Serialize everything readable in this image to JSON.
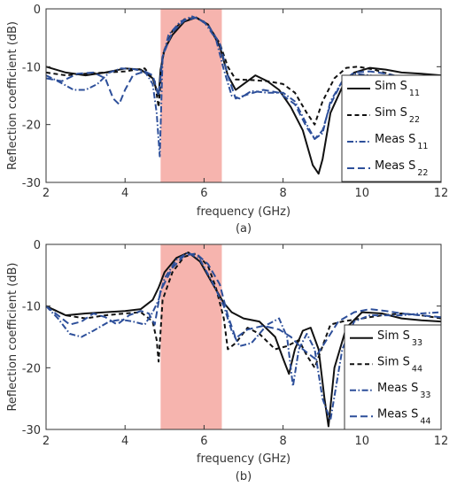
{
  "chart_data": [
    {
      "type": "line",
      "caption": "(a)",
      "xlabel": "frequency (GHz)",
      "ylabel": "Reflection coefficient  (dB)",
      "xlim": [
        2,
        12
      ],
      "ylim": [
        -30,
        0
      ],
      "xticks": [
        "2",
        "4",
        "6",
        "8",
        "10",
        "12"
      ],
      "yticks": [
        "0",
        "-10",
        "-20",
        "-30"
      ],
      "grid": false,
      "legend_position": "right",
      "band": {
        "x0": 4.9,
        "x1": 6.45,
        "color": "#f4a7a0"
      },
      "series": [
        {
          "name": "Sim S",
          "sub": "11",
          "color": "#111111",
          "dash": "solid",
          "x": [
            2,
            2.5,
            3,
            3.5,
            4,
            4.4,
            4.7,
            4.85,
            4.9,
            5.0,
            5.2,
            5.5,
            5.8,
            6.1,
            6.4,
            6.6,
            6.8,
            7.0,
            7.3,
            7.6,
            7.9,
            8.2,
            8.5,
            8.75,
            8.9,
            9.0,
            9.2,
            9.5,
            9.8,
            10.2,
            10.6,
            11,
            11.5,
            12
          ],
          "y": [
            -10,
            -11,
            -11.5,
            -11,
            -10.3,
            -10.5,
            -12,
            -15,
            -10.5,
            -7,
            -4.5,
            -2.2,
            -1.5,
            -2.7,
            -6.5,
            -11.5,
            -14,
            -13,
            -11.5,
            -12.5,
            -14,
            -17,
            -21,
            -27,
            -28.5,
            -26,
            -18,
            -13.5,
            -11,
            -10.2,
            -10.5,
            -11,
            -11.2,
            -11.5
          ]
        },
        {
          "name": "Sim S",
          "sub": "22",
          "color": "#111111",
          "dash": "dashed",
          "x": [
            2,
            2.5,
            3,
            3.5,
            4,
            4.5,
            4.75,
            4.85,
            4.95,
            5.2,
            5.5,
            5.8,
            6.1,
            6.4,
            6.6,
            6.8,
            7.2,
            7.6,
            8.0,
            8.3,
            8.6,
            8.8,
            9.0,
            9.3,
            9.6,
            9.9,
            10.3,
            10.8,
            11.5,
            12
          ],
          "y": [
            -11,
            -11.5,
            -11.2,
            -11,
            -10.8,
            -10.3,
            -12.5,
            -17,
            -8,
            -3.8,
            -1.8,
            -1.5,
            -2.8,
            -6,
            -10,
            -12.2,
            -12.3,
            -12.5,
            -13,
            -14.5,
            -18,
            -20,
            -16,
            -12,
            -10.2,
            -10,
            -10.5,
            -11.5,
            -12,
            -12.5
          ]
        },
        {
          "name": "Meas S",
          "sub": "11",
          "color": "#2d4f9a",
          "dash": "dashdot",
          "x": [
            2,
            2.3,
            2.7,
            3.0,
            3.3,
            3.6,
            3.9,
            4.2,
            4.5,
            4.7,
            4.8,
            4.88,
            4.95,
            5.1,
            5.4,
            5.7,
            6.0,
            6.3,
            6.5,
            6.7,
            6.9,
            7.2,
            7.6,
            8.0,
            8.3,
            8.6,
            8.8,
            9.0,
            9.2,
            9.5,
            9.8,
            10.2,
            10.6,
            11,
            11.5,
            12
          ],
          "y": [
            -11.5,
            -12.5,
            -14,
            -14,
            -13,
            -11,
            -10.3,
            -10.4,
            -10.8,
            -13,
            -18,
            -25.5,
            -8.5,
            -4.5,
            -2.2,
            -1.3,
            -2.2,
            -5.2,
            -10.5,
            -15,
            -15.5,
            -14.2,
            -14.5,
            -14.5,
            -16,
            -20,
            -22.5,
            -21.5,
            -16,
            -12.5,
            -11.2,
            -11.5,
            -12,
            -12,
            -12.1,
            -12.2
          ]
        },
        {
          "name": "Meas S",
          "sub": "22",
          "color": "#2d4f9a",
          "dash": "longdash",
          "x": [
            2,
            2.4,
            2.8,
            3.2,
            3.5,
            3.7,
            3.85,
            4.0,
            4.2,
            4.5,
            4.7,
            4.85,
            4.95,
            5.2,
            5.5,
            5.8,
            6.1,
            6.4,
            6.6,
            6.8,
            7.1,
            7.5,
            7.9,
            8.3,
            8.6,
            8.8,
            9.0,
            9.2,
            9.5,
            9.8,
            10.2,
            10.6,
            11,
            11.5,
            12
          ],
          "y": [
            -12,
            -12.5,
            -11.2,
            -11,
            -12,
            -15.5,
            -16.5,
            -14,
            -11.5,
            -10.8,
            -11.5,
            -15,
            -8.2,
            -4,
            -2,
            -1.5,
            -2.8,
            -6,
            -11.5,
            -15.5,
            -14.8,
            -14,
            -14.5,
            -16.5,
            -20.5,
            -22.5,
            -21,
            -16.5,
            -12.5,
            -11,
            -10.8,
            -11.2,
            -11.8,
            -12,
            -12.3
          ]
        }
      ]
    },
    {
      "type": "line",
      "caption": "(b)",
      "xlabel": "frequency (GHz)",
      "ylabel": "Reflection coefficient  (dB)",
      "xlim": [
        2,
        12
      ],
      "ylim": [
        -30,
        0
      ],
      "xticks": [
        "2",
        "4",
        "6",
        "8",
        "10",
        "12"
      ],
      "yticks": [
        "0",
        "-10",
        "-20",
        "-30"
      ],
      "grid": false,
      "legend_position": "bottom-right",
      "band": {
        "x0": 4.9,
        "x1": 6.45,
        "color": "#f4a7a0"
      },
      "series": [
        {
          "name": "Sim S",
          "sub": "33",
          "color": "#111111",
          "dash": "solid",
          "x": [
            2,
            2.5,
            3,
            3.5,
            4,
            4.4,
            4.7,
            4.85,
            5.0,
            5.3,
            5.6,
            5.9,
            6.2,
            6.5,
            6.7,
            7.0,
            7.4,
            7.8,
            8.0,
            8.15,
            8.3,
            8.5,
            8.7,
            8.9,
            9.05,
            9.15,
            9.3,
            9.6,
            10,
            10.5,
            11,
            11.5,
            12
          ],
          "y": [
            -10,
            -11.5,
            -11.2,
            -11,
            -10.8,
            -10.5,
            -9,
            -7,
            -4.5,
            -2.2,
            -1.3,
            -2.8,
            -6.2,
            -9.5,
            -11,
            -12,
            -12.5,
            -15,
            -18.5,
            -21,
            -17,
            -14,
            -13.5,
            -17,
            -25,
            -29.5,
            -20,
            -13.5,
            -11,
            -11.2,
            -12,
            -12.3,
            -12.5
          ]
        },
        {
          "name": "Sim S",
          "sub": "44",
          "color": "#111111",
          "dash": "dashed",
          "x": [
            2,
            2.5,
            3,
            3.5,
            4,
            4.4,
            4.7,
            4.8,
            4.85,
            4.95,
            5.2,
            5.5,
            5.8,
            6.1,
            6.3,
            6.5,
            6.6,
            6.8,
            7.1,
            7.4,
            7.8,
            8.1,
            8.4,
            8.6,
            8.8,
            9.0,
            9.2,
            9.5,
            10,
            10.5,
            11,
            11.5,
            12
          ],
          "y": [
            -10,
            -11.5,
            -12,
            -11.5,
            -11.2,
            -11,
            -12.5,
            -15.5,
            -19,
            -9,
            -4.5,
            -2,
            -1.5,
            -3.5,
            -7,
            -12,
            -17,
            -16,
            -13.5,
            -14.5,
            -17,
            -16.5,
            -15.5,
            -18,
            -20,
            -16.5,
            -13,
            -12.5,
            -12,
            -11.5,
            -11.2,
            -11.5,
            -12
          ]
        },
        {
          "name": "Meas S",
          "sub": "33",
          "color": "#2d4f9a",
          "dash": "dashdot",
          "x": [
            2,
            2.3,
            2.6,
            2.9,
            3.2,
            3.6,
            3.9,
            4.2,
            4.5,
            4.7,
            4.85,
            5.0,
            5.3,
            5.6,
            5.9,
            6.2,
            6.5,
            6.7,
            6.9,
            7.2,
            7.6,
            7.9,
            8.1,
            8.25,
            8.4,
            8.6,
            8.8,
            9.0,
            9.2,
            9.5,
            9.8,
            10.2,
            10.6,
            11,
            11.5,
            12
          ],
          "y": [
            -10,
            -12,
            -14.5,
            -15,
            -14,
            -12.5,
            -12.2,
            -12.5,
            -13,
            -11,
            -9,
            -5.5,
            -2.5,
            -1.3,
            -2.5,
            -6,
            -10,
            -14,
            -16.5,
            -16,
            -13,
            -12,
            -15,
            -23,
            -17,
            -14.5,
            -17,
            -25,
            -28.5,
            -17,
            -12.5,
            -11.5,
            -11.5,
            -11.5,
            -11.2,
            -11
          ]
        },
        {
          "name": "Meas S",
          "sub": "44",
          "color": "#2d4f9a",
          "dash": "longdash",
          "x": [
            2,
            2.3,
            2.6,
            2.9,
            3.2,
            3.5,
            3.8,
            4.1,
            4.4,
            4.6,
            4.75,
            4.9,
            5.2,
            5.5,
            5.8,
            6.1,
            6.4,
            6.6,
            6.8,
            7.1,
            7.5,
            7.9,
            8.2,
            8.5,
            8.8,
            9.1,
            9.4,
            9.8,
            10.2,
            10.6,
            11,
            11.5,
            12
          ],
          "y": [
            -10,
            -11.5,
            -13,
            -12.5,
            -11.2,
            -11.8,
            -13,
            -11.5,
            -10.8,
            -11.2,
            -13,
            -7.5,
            -3.8,
            -1.8,
            -1.5,
            -3.2,
            -6.5,
            -11.5,
            -15.2,
            -13.8,
            -13.2,
            -13.8,
            -15,
            -17,
            -18.5,
            -15.5,
            -12.5,
            -11,
            -10.5,
            -10.8,
            -11.2,
            -11.5,
            -11.8
          ]
        }
      ]
    }
  ]
}
